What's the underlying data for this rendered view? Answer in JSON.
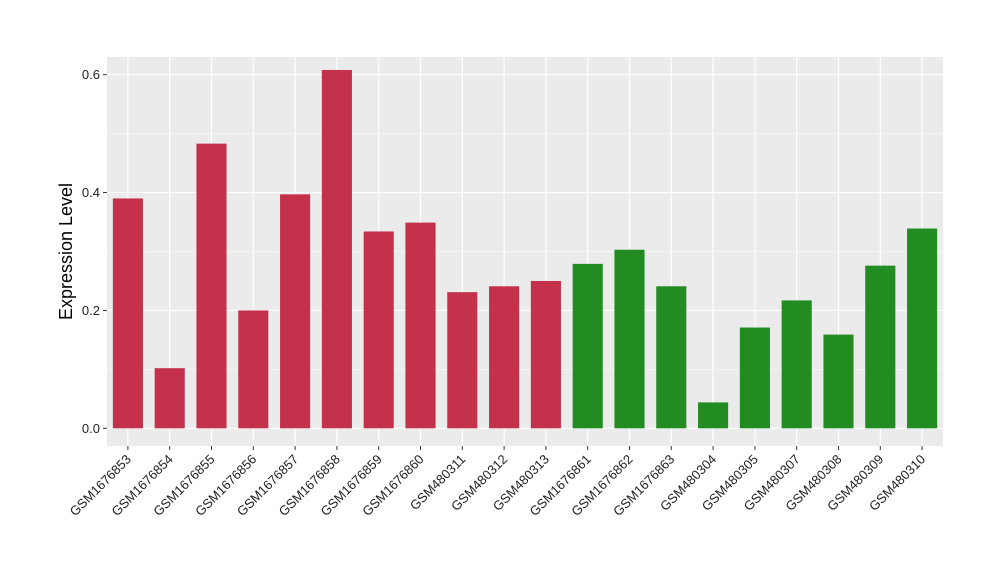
{
  "chart_data": {
    "type": "bar",
    "title": "",
    "xlabel": "",
    "ylabel": "Expression Level",
    "ylim": [
      -0.03,
      0.63
    ],
    "yticks": [
      0.0,
      0.2,
      0.4,
      0.6
    ],
    "ytick_labels": [
      "0.0",
      "0.2",
      "0.4",
      "0.6"
    ],
    "grid": true,
    "legend": "none",
    "categories": [
      "GSM1676853",
      "GSM1676854",
      "GSM1676855",
      "GSM1676856",
      "GSM1676857",
      "GSM1676858",
      "GSM1676859",
      "GSM1676860",
      "GSM480311",
      "GSM480312",
      "GSM480313",
      "GSM1676861",
      "GSM1676862",
      "GSM1676863",
      "GSM480304",
      "GSM480305",
      "GSM480307",
      "GSM480308",
      "GSM480309",
      "GSM480310"
    ],
    "values": [
      0.39,
      0.102,
      0.483,
      0.2,
      0.397,
      0.608,
      0.334,
      0.349,
      0.231,
      0.241,
      0.25,
      0.279,
      0.303,
      0.241,
      0.044,
      0.171,
      0.217,
      0.159,
      0.276,
      0.339
    ],
    "bar_colors": [
      "#c4314b",
      "#c4314b",
      "#c4314b",
      "#c4314b",
      "#c4314b",
      "#c4314b",
      "#c4314b",
      "#c4314b",
      "#c4314b",
      "#c4314b",
      "#c4314b",
      "#228b22",
      "#228b22",
      "#228b22",
      "#228b22",
      "#228b22",
      "#228b22",
      "#228b22",
      "#228b22",
      "#228b22"
    ],
    "panel_color": "#ebebeb",
    "grid_color": "#ffffff"
  }
}
